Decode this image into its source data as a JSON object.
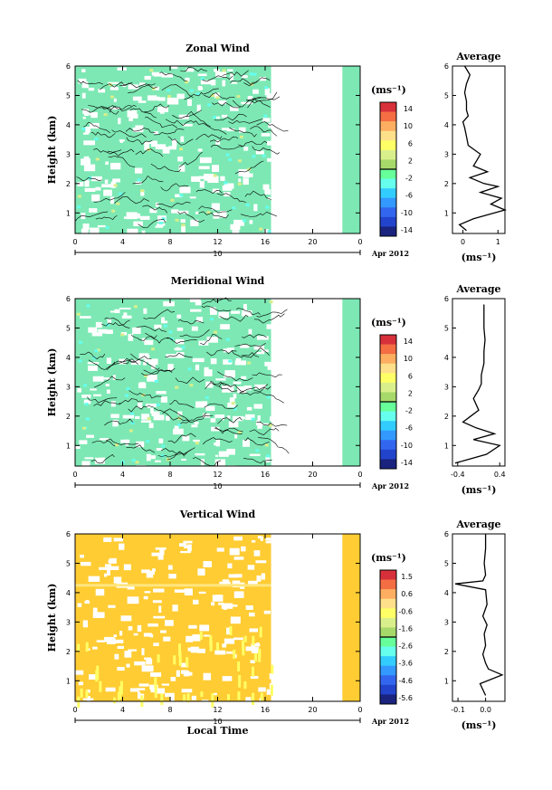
{
  "panels": [
    {
      "title": "Zonal Wind",
      "ylabel": "Height (km)",
      "yticks": [
        "1",
        "2",
        "3",
        "4",
        "5",
        "6"
      ],
      "xticks": [
        "0",
        "4",
        "8",
        "12",
        "16",
        "20",
        "0"
      ],
      "date_label": "Apr 2012",
      "day_label": "10",
      "unit": "(ms⁻¹)",
      "colorbar_ticks": [
        "14",
        "10",
        "6",
        "2",
        "-2",
        "-6",
        "-10",
        "-14"
      ],
      "fill_color": "#7de8b4",
      "avg_title": "Average",
      "avg_xticks": [
        "0",
        "1"
      ],
      "avg_unit": "(ms⁻¹)"
    },
    {
      "title": "Meridional Wind",
      "ylabel": "Height (km)",
      "yticks": [
        "1",
        "2",
        "3",
        "4",
        "5",
        "6"
      ],
      "xticks": [
        "0",
        "4",
        "8",
        "12",
        "16",
        "20",
        "0"
      ],
      "date_label": "Apr 2012",
      "day_label": "10",
      "unit": "(ms⁻¹)",
      "colorbar_ticks": [
        "14",
        "10",
        "6",
        "2",
        "-2",
        "-6",
        "-10",
        "-14"
      ],
      "fill_color": "#7de8b4",
      "avg_title": "Average",
      "avg_xticks": [
        "-0.4",
        "0.4"
      ],
      "avg_unit": "(ms⁻¹)"
    },
    {
      "title": "Vertical Wind",
      "ylabel": "Height (km)",
      "yticks": [
        "1",
        "2",
        "3",
        "4",
        "5",
        "6"
      ],
      "xticks": [
        "0",
        "4",
        "8",
        "12",
        "16",
        "20",
        "0"
      ],
      "date_label": "Apr 2012",
      "day_label": "10",
      "xlabel": "Local Time",
      "unit": "(ms⁻¹)",
      "colorbar_ticks": [
        "1.5",
        "0.6",
        "-0.6",
        "-1.6",
        "-2.6",
        "-3.6",
        "-4.6",
        "-5.6"
      ],
      "fill_color": "#ffcc33",
      "avg_title": "Average",
      "avg_xticks": [
        "-0.1",
        "0.0"
      ],
      "avg_unit": "(ms⁻¹)"
    }
  ],
  "chart_data": [
    {
      "type": "heatmap",
      "title": "Zonal Wind",
      "ylabel": "Height (km)",
      "x_range_hours": [
        0,
        24
      ],
      "ylim": [
        0.3,
        6
      ],
      "colorbar_range": [
        -14,
        14
      ],
      "data_gap_hours": [
        16.5,
        22.5
      ]
    },
    {
      "type": "line",
      "title": "Average",
      "xlim": [
        -0.3,
        1.2
      ],
      "ylim": [
        0.3,
        6
      ],
      "x": [
        0.05,
        0.2,
        0.1,
        0.05,
        0.1,
        0.1,
        0.15,
        0.0,
        0.05,
        0.1,
        0.15,
        0.5,
        0.4,
        0.3,
        0.7,
        0.2,
        0.6,
        1.0,
        0.5,
        1.1,
        0.8,
        1.2,
        0.3,
        -0.1,
        0.1
      ],
      "y": [
        6.0,
        5.7,
        5.4,
        5.1,
        4.8,
        4.5,
        4.3,
        4.1,
        3.9,
        3.6,
        3.3,
        3.0,
        2.8,
        2.6,
        2.4,
        2.2,
        2.0,
        1.9,
        1.7,
        1.5,
        1.3,
        1.1,
        0.8,
        0.6,
        0.4
      ]
    },
    {
      "type": "heatmap",
      "title": "Meridional Wind",
      "ylabel": "Height (km)",
      "x_range_hours": [
        0,
        24
      ],
      "ylim": [
        0.3,
        6
      ],
      "colorbar_range": [
        -14,
        14
      ],
      "data_gap_hours": [
        16.5,
        22.5
      ]
    },
    {
      "type": "line",
      "title": "Average",
      "xlim": [
        -0.5,
        0.5
      ],
      "ylim": [
        0.3,
        6
      ],
      "x": [
        0.1,
        0.1,
        0.1,
        0.12,
        0.1,
        0.1,
        0.05,
        0.05,
        0.0,
        -0.1,
        -0.05,
        0.0,
        -0.15,
        -0.3,
        -0.05,
        0.3,
        -0.1,
        0.4,
        0.15,
        -0.45
      ],
      "y": [
        5.8,
        5.5,
        5.0,
        4.6,
        4.2,
        3.8,
        3.4,
        3.1,
        2.9,
        2.6,
        2.4,
        2.2,
        2.0,
        1.8,
        1.6,
        1.4,
        1.2,
        1.0,
        0.7,
        0.4
      ]
    },
    {
      "type": "heatmap",
      "title": "Vertical Wind",
      "ylabel": "Height (km)",
      "xlabel": "Local Time",
      "x_range_hours": [
        0,
        24
      ],
      "ylim": [
        0.3,
        6
      ],
      "colorbar_range": [
        -5.6,
        1.5
      ],
      "data_gap_hours": [
        16.5,
        22.5
      ]
    },
    {
      "type": "line",
      "title": "Average",
      "xlim": [
        -0.12,
        0.07
      ],
      "ylim": [
        0.3,
        6
      ],
      "x": [
        0.0,
        0.0,
        -0.005,
        0.0,
        -0.01,
        -0.11,
        0.0,
        0.005,
        -0.01,
        0.005,
        -0.005,
        0.0,
        -0.01,
        0.0,
        0.01,
        0.06,
        -0.02,
        0.0
      ],
      "y": [
        6.0,
        5.5,
        5.0,
        4.6,
        4.4,
        4.3,
        4.1,
        3.6,
        3.2,
        2.9,
        2.6,
        2.2,
        1.9,
        1.6,
        1.4,
        1.2,
        0.9,
        0.5
      ]
    }
  ]
}
